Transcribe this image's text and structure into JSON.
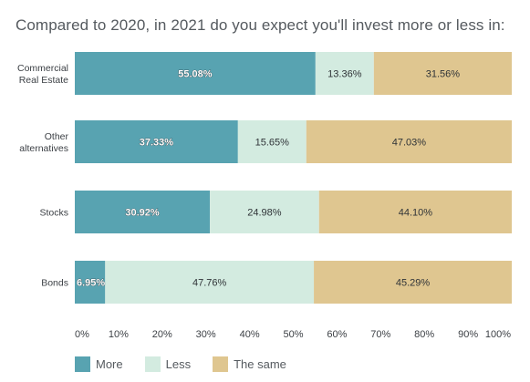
{
  "chart_data": {
    "type": "bar",
    "orientation": "horizontal",
    "stacked": true,
    "title": "Compared to 2020, in 2021 do you expect you'll invest more or less in:",
    "categories": [
      "Commercial\nReal Estate",
      "Other\nalternatives",
      "Stocks",
      "Bonds"
    ],
    "series": [
      {
        "name": "More",
        "color": "#58a3b1",
        "values": [
          55.08,
          37.33,
          30.92,
          6.95
        ],
        "labels": [
          "55.08%",
          "37.33%",
          "30.92%",
          "6.95%"
        ]
      },
      {
        "name": "Less",
        "color": "#d3ebe0",
        "values": [
          13.36,
          15.65,
          24.98,
          47.76
        ],
        "labels": [
          "13.36%",
          "15.65%",
          "24.98%",
          "47.76%"
        ]
      },
      {
        "name": "The same",
        "color": "#dfc690",
        "values": [
          31.56,
          47.03,
          44.1,
          45.29
        ],
        "labels": [
          "31.56%",
          "47.03%",
          "44.10%",
          "45.29%"
        ]
      }
    ],
    "xlim": [
      0,
      100
    ],
    "xticks": [
      "0%",
      "10%",
      "20%",
      "30%",
      "40%",
      "50%",
      "60%",
      "70%",
      "80%",
      "90%",
      "100%"
    ],
    "grid": false,
    "legend_position": "bottom-left"
  }
}
